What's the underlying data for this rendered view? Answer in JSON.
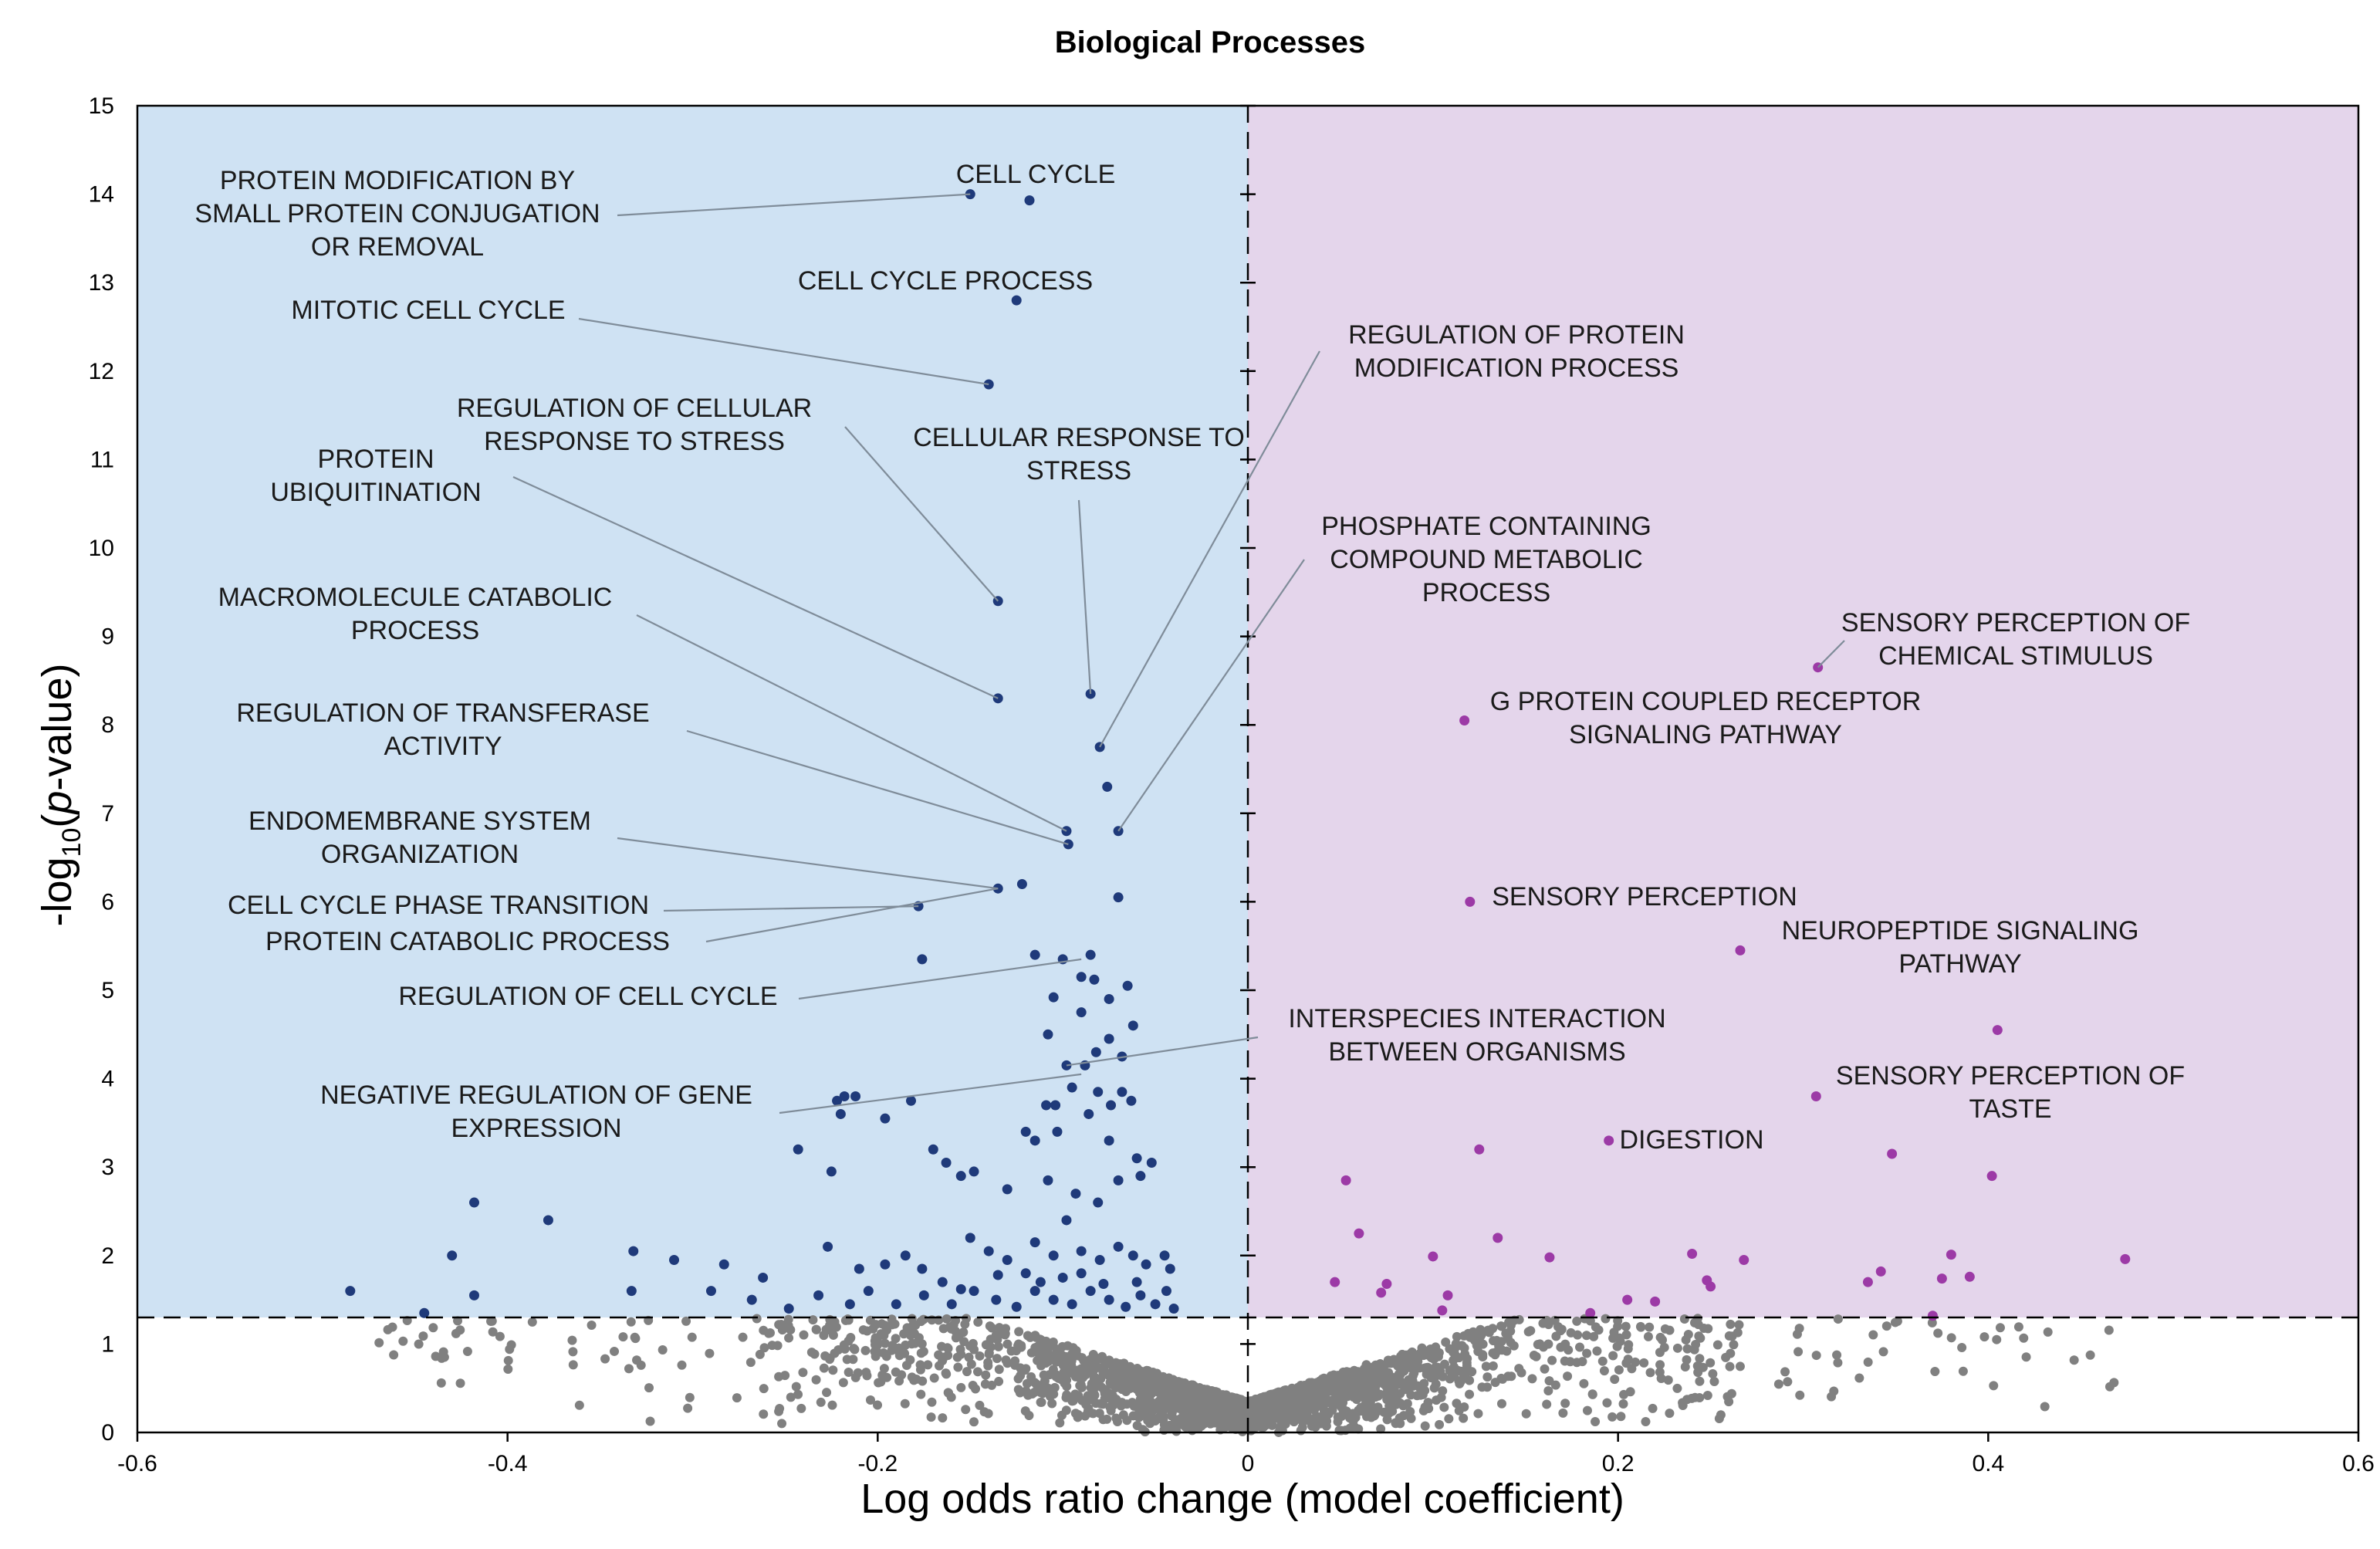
{
  "chart_data": {
    "type": "scatter",
    "title": "Biological Processes",
    "xlabel": "Log odds ratio change (model coefficient)",
    "ylabel_parts": [
      "-log",
      "10",
      "(",
      "p",
      "-value)"
    ],
    "xlim": [
      -0.6,
      0.6
    ],
    "ylim": [
      0,
      15
    ],
    "x_ticks": [
      -0.6,
      -0.4,
      -0.2,
      0,
      0.2,
      0.4,
      0.6
    ],
    "x_tick_labels": [
      "-0.6",
      "-0.4",
      "-0.2",
      "0",
      "0.2",
      "0.4",
      "0.6"
    ],
    "y_ticks": [
      0,
      1,
      2,
      3,
      4,
      5,
      6,
      7,
      8,
      9,
      10,
      11,
      12,
      13,
      14,
      15
    ],
    "y_tick_labels": [
      "0",
      "1",
      "2",
      "3",
      "4",
      "5",
      "6",
      "7",
      "8",
      "9",
      "10",
      "11",
      "12",
      "13",
      "14",
      "15"
    ],
    "significance_threshold": 1.3,
    "colors": {
      "negative_region": "#cfe2f3",
      "positive_region": "#e4d5eb",
      "negative_points": "#1f3a7a",
      "positive_points": "#9c3aa6",
      "nonsignificant_points": "#808080",
      "leader_line": "#7f8c99"
    },
    "series": [
      {
        "name": "Significant, negative coefficient",
        "color": "#1f3a7a",
        "points": [
          [
            -0.15,
            14.0
          ],
          [
            -0.118,
            13.93
          ],
          [
            -0.125,
            12.8
          ],
          [
            -0.14,
            11.85
          ],
          [
            -0.135,
            9.4
          ],
          [
            -0.135,
            8.3
          ],
          [
            -0.085,
            8.35
          ],
          [
            -0.08,
            7.75
          ],
          [
            -0.076,
            7.3
          ],
          [
            -0.07,
            6.8
          ],
          [
            -0.098,
            6.8
          ],
          [
            -0.097,
            6.65
          ],
          [
            -0.122,
            6.2
          ],
          [
            -0.135,
            6.15
          ],
          [
            -0.07,
            6.05
          ],
          [
            -0.178,
            5.95
          ],
          [
            -0.176,
            5.35
          ],
          [
            -0.115,
            5.4
          ],
          [
            -0.1,
            5.35
          ],
          [
            -0.085,
            5.4
          ],
          [
            -0.09,
            5.15
          ],
          [
            -0.083,
            5.12
          ],
          [
            -0.065,
            5.05
          ],
          [
            -0.075,
            4.9
          ],
          [
            -0.105,
            4.92
          ],
          [
            -0.09,
            4.75
          ],
          [
            -0.062,
            4.6
          ],
          [
            -0.108,
            4.5
          ],
          [
            -0.075,
            4.45
          ],
          [
            -0.082,
            4.3
          ],
          [
            -0.068,
            4.25
          ],
          [
            -0.088,
            4.15
          ],
          [
            -0.098,
            4.15
          ],
          [
            -0.182,
            3.75
          ],
          [
            -0.212,
            3.8
          ],
          [
            -0.218,
            3.8
          ],
          [
            -0.222,
            3.75
          ],
          [
            -0.22,
            3.6
          ],
          [
            -0.196,
            3.55
          ],
          [
            -0.095,
            3.9
          ],
          [
            -0.081,
            3.85
          ],
          [
            -0.068,
            3.85
          ],
          [
            -0.063,
            3.75
          ],
          [
            -0.074,
            3.7
          ],
          [
            -0.086,
            3.6
          ],
          [
            -0.104,
            3.7
          ],
          [
            -0.109,
            3.7
          ],
          [
            -0.243,
            3.2
          ],
          [
            -0.225,
            2.95
          ],
          [
            -0.12,
            3.4
          ],
          [
            -0.115,
            3.3
          ],
          [
            -0.103,
            3.4
          ],
          [
            -0.075,
            3.3
          ],
          [
            -0.06,
            3.1
          ],
          [
            -0.052,
            3.05
          ],
          [
            -0.058,
            2.9
          ],
          [
            -0.07,
            2.85
          ],
          [
            -0.081,
            2.6
          ],
          [
            -0.093,
            2.7
          ],
          [
            -0.108,
            2.85
          ],
          [
            -0.13,
            2.75
          ],
          [
            -0.155,
            2.9
          ],
          [
            -0.17,
            3.2
          ],
          [
            -0.163,
            3.05
          ],
          [
            -0.148,
            2.95
          ],
          [
            -0.418,
            2.6
          ],
          [
            -0.43,
            2.0
          ],
          [
            -0.378,
            2.4
          ],
          [
            -0.332,
            2.05
          ],
          [
            -0.31,
            1.95
          ],
          [
            -0.283,
            1.9
          ],
          [
            -0.262,
            1.75
          ],
          [
            -0.227,
            2.1
          ],
          [
            -0.21,
            1.85
          ],
          [
            -0.196,
            1.9
          ],
          [
            -0.185,
            2.0
          ],
          [
            -0.176,
            1.85
          ],
          [
            -0.165,
            1.7
          ],
          [
            -0.15,
            2.2
          ],
          [
            -0.14,
            2.05
          ],
          [
            -0.13,
            1.95
          ],
          [
            -0.115,
            2.15
          ],
          [
            -0.105,
            2.0
          ],
          [
            -0.09,
            2.05
          ],
          [
            -0.08,
            1.95
          ],
          [
            -0.07,
            2.1
          ],
          [
            -0.062,
            2.0
          ],
          [
            -0.055,
            1.9
          ],
          [
            -0.045,
            2.0
          ],
          [
            -0.042,
            1.85
          ],
          [
            -0.485,
            1.6
          ],
          [
            -0.418,
            1.55
          ],
          [
            -0.333,
            1.6
          ],
          [
            -0.29,
            1.6
          ],
          [
            -0.268,
            1.5
          ],
          [
            -0.248,
            1.4
          ],
          [
            -0.232,
            1.55
          ],
          [
            -0.215,
            1.45
          ],
          [
            -0.205,
            1.6
          ],
          [
            -0.19,
            1.45
          ],
          [
            -0.175,
            1.55
          ],
          [
            -0.16,
            1.45
          ],
          [
            -0.148,
            1.6
          ],
          [
            -0.136,
            1.5
          ],
          [
            -0.125,
            1.42
          ],
          [
            -0.115,
            1.6
          ],
          [
            -0.105,
            1.5
          ],
          [
            -0.095,
            1.45
          ],
          [
            -0.085,
            1.6
          ],
          [
            -0.075,
            1.5
          ],
          [
            -0.066,
            1.42
          ],
          [
            -0.058,
            1.55
          ],
          [
            -0.05,
            1.45
          ],
          [
            -0.044,
            1.6
          ],
          [
            -0.04,
            1.4
          ],
          [
            -0.445,
            1.35
          ],
          [
            -0.1,
            1.75
          ],
          [
            -0.09,
            1.8
          ],
          [
            -0.06,
            1.7
          ],
          [
            -0.078,
            1.68
          ],
          [
            -0.112,
            1.7
          ],
          [
            -0.12,
            1.8
          ],
          [
            -0.135,
            1.78
          ],
          [
            -0.155,
            1.62
          ],
          [
            -0.098,
            2.4
          ]
        ]
      },
      {
        "name": "Significant, positive coefficient",
        "color": "#9c3aa6",
        "points": [
          [
            0.308,
            8.65
          ],
          [
            0.117,
            8.05
          ],
          [
            0.12,
            6.0
          ],
          [
            0.266,
            5.45
          ],
          [
            0.405,
            4.55
          ],
          [
            0.307,
            3.8
          ],
          [
            0.195,
            3.3
          ],
          [
            0.125,
            3.2
          ],
          [
            0.348,
            3.15
          ],
          [
            0.053,
            2.85
          ],
          [
            0.402,
            2.9
          ],
          [
            0.06,
            2.25
          ],
          [
            0.135,
            2.2
          ],
          [
            0.1,
            1.99
          ],
          [
            0.163,
            1.98
          ],
          [
            0.24,
            2.02
          ],
          [
            0.268,
            1.95
          ],
          [
            0.38,
            2.01
          ],
          [
            0.474,
            1.96
          ],
          [
            0.047,
            1.7
          ],
          [
            0.075,
            1.68
          ],
          [
            0.072,
            1.58
          ],
          [
            0.108,
            1.55
          ],
          [
            0.205,
            1.5
          ],
          [
            0.22,
            1.48
          ],
          [
            0.248,
            1.72
          ],
          [
            0.25,
            1.65
          ],
          [
            0.342,
            1.82
          ],
          [
            0.335,
            1.7
          ],
          [
            0.375,
            1.74
          ],
          [
            0.39,
            1.76
          ],
          [
            0.105,
            1.38
          ],
          [
            0.185,
            1.35
          ],
          [
            0.37,
            1.32
          ]
        ]
      }
    ],
    "annotations": [
      {
        "lines": [
          "PROTEIN MODIFICATION BY",
          "SMALL PROTEIN CONJUGATION",
          "OR REMOVAL"
        ],
        "point": [
          -0.15,
          14.0
        ]
      },
      {
        "lines": [
          "CELL CYCLE"
        ],
        "point": [
          -0.118,
          13.93
        ]
      },
      {
        "lines": [
          "CELL CYCLE PROCESS"
        ],
        "point": [
          -0.125,
          12.8
        ]
      },
      {
        "lines": [
          "MITOTIC CELL CYCLE"
        ],
        "point": [
          -0.14,
          11.85
        ]
      },
      {
        "lines": [
          "REGULATION OF CELLULAR",
          "RESPONSE TO STRESS"
        ],
        "point": [
          -0.135,
          9.4
        ]
      },
      {
        "lines": [
          "CELLULAR RESPONSE TO",
          "STRESS"
        ],
        "point": [
          -0.085,
          8.35
        ]
      },
      {
        "lines": [
          "PROTEIN",
          "UBIQUITINATION"
        ],
        "point": [
          -0.135,
          8.3
        ]
      },
      {
        "lines": [
          "REGULATION OF PROTEIN",
          "MODIFICATION PROCESS"
        ],
        "point": [
          -0.08,
          7.75
        ]
      },
      {
        "lines": [
          "PHOSPHATE CONTAINING",
          "COMPOUND METABOLIC",
          "PROCESS"
        ],
        "point": [
          -0.07,
          6.8
        ]
      },
      {
        "lines": [
          "MACROMOLECULE CATABOLIC",
          "PROCESS"
        ],
        "point": [
          -0.098,
          6.8
        ]
      },
      {
        "lines": [
          "REGULATION OF TRANSFERASE",
          "ACTIVITY"
        ],
        "point": [
          -0.097,
          6.65
        ]
      },
      {
        "lines": [
          "ENDOMEMBRANE SYSTEM",
          "ORGANIZATION"
        ],
        "point": [
          -0.135,
          6.15
        ]
      },
      {
        "lines": [
          "CELL CYCLE PHASE TRANSITION"
        ],
        "point": [
          -0.178,
          5.95
        ]
      },
      {
        "lines": [
          "PROTEIN CATABOLIC PROCESS"
        ],
        "point": [
          -0.135,
          6.15
        ]
      },
      {
        "lines": [
          "REGULATION OF CELL CYCLE"
        ],
        "point": [
          -0.09,
          5.35
        ]
      },
      {
        "lines": [
          "INTERSPECIES INTERACTION",
          "BETWEEN ORGANISMS"
        ],
        "point": [
          -0.098,
          4.15
        ]
      },
      {
        "lines": [
          "NEGATIVE REGULATION OF GENE",
          "EXPRESSION"
        ],
        "point": [
          -0.09,
          4.05
        ]
      },
      {
        "lines": [
          "SENSORY PERCEPTION OF",
          "CHEMICAL STIMULUS"
        ],
        "point": [
          0.308,
          8.65
        ]
      },
      {
        "lines": [
          "G PROTEIN COUPLED RECEPTOR",
          "SIGNALING PATHWAY"
        ],
        "point": [
          0.117,
          8.05
        ]
      },
      {
        "lines": [
          "SENSORY PERCEPTION"
        ],
        "point": [
          0.12,
          6.0
        ]
      },
      {
        "lines": [
          "NEUROPEPTIDE SIGNALING",
          "PATHWAY"
        ],
        "point": [
          0.266,
          5.45
        ]
      },
      {
        "lines": [
          "SENSORY PERCEPTION OF",
          "TASTE"
        ],
        "point": [
          0.307,
          3.8
        ]
      },
      {
        "lines": [
          "DIGESTION"
        ],
        "point": [
          0.195,
          3.3
        ]
      }
    ]
  }
}
